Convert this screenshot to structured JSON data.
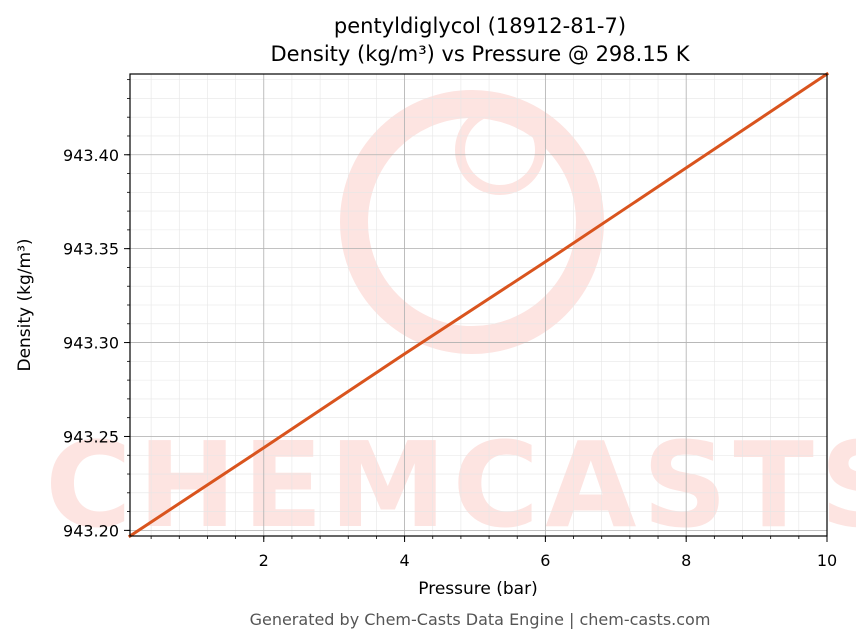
{
  "chart_data": {
    "type": "line",
    "title": "pentyldiglycol (18912-81-7)",
    "subtitle": "Density (kg/m³) vs Pressure @ 298.15 K",
    "xlabel": "Pressure (bar)",
    "ylabel": "Density (kg/m³)",
    "xlim": [
      0.1,
      10
    ],
    "ylim": [
      943.197,
      943.443
    ],
    "x_ticks": [
      2,
      4,
      6,
      8,
      10
    ],
    "y_ticks": [
      943.2,
      943.25,
      943.3,
      943.35,
      943.4
    ],
    "x_tick_labels": [
      "2",
      "4",
      "6",
      "8",
      "10"
    ],
    "y_tick_labels": [
      "943.20",
      "943.25",
      "943.30",
      "943.35",
      "943.40"
    ],
    "grid": true,
    "series": [
      {
        "color": "#d9541e",
        "x": [
          0.1,
          2,
          4,
          6,
          8,
          10
        ],
        "y": [
          943.197,
          943.244,
          943.294,
          943.343,
          943.393,
          943.443
        ]
      }
    ]
  },
  "watermark": {
    "text": "CHEMCASTS",
    "color": "#fde4e1"
  },
  "footer": "Generated by Chem-Casts Data Engine | chem-casts.com"
}
